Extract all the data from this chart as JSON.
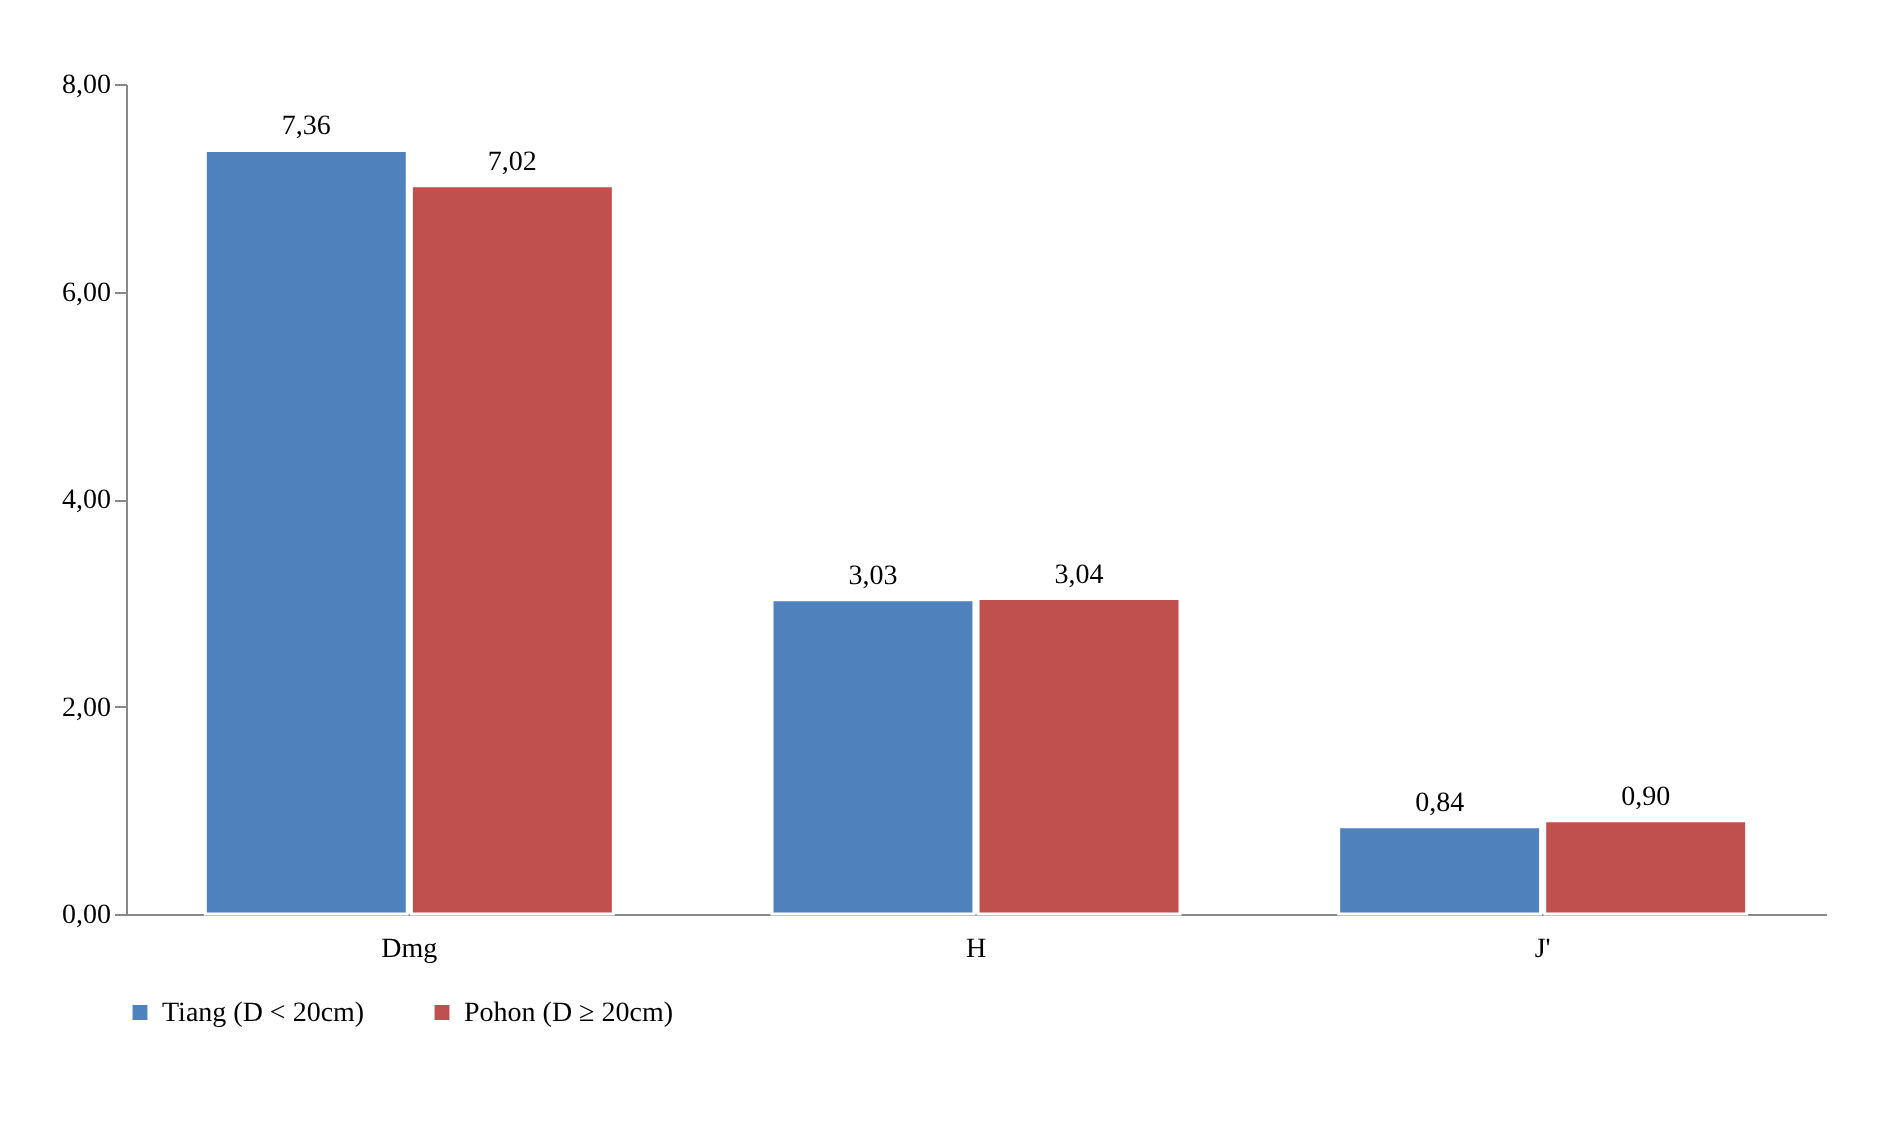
{
  "chart_data": {
    "type": "bar",
    "categories": [
      "Dmg",
      "H",
      "J'"
    ],
    "series": [
      {
        "name": "Tiang (D < 20cm)",
        "color": "#4f81bd",
        "values": [
          7.36,
          3.03,
          0.84
        ],
        "value_labels": [
          "7,36",
          "3,03",
          "0,84"
        ]
      },
      {
        "name": "Pohon (D ≥ 20cm)",
        "color": "#c0504d",
        "values": [
          7.02,
          3.04,
          0.9
        ],
        "value_labels": [
          "7,02",
          "3,04",
          "0,90"
        ]
      }
    ],
    "ylim": [
      0,
      8
    ],
    "yticks": [
      {
        "value": 0,
        "label": "0,00"
      },
      {
        "value": 2,
        "label": "2,00"
      },
      {
        "value": 4,
        "label": "4,00"
      },
      {
        "value": 6,
        "label": "6,00"
      },
      {
        "value": 8,
        "label": "8,00"
      }
    ],
    "grid": false,
    "legend": "bottom"
  }
}
